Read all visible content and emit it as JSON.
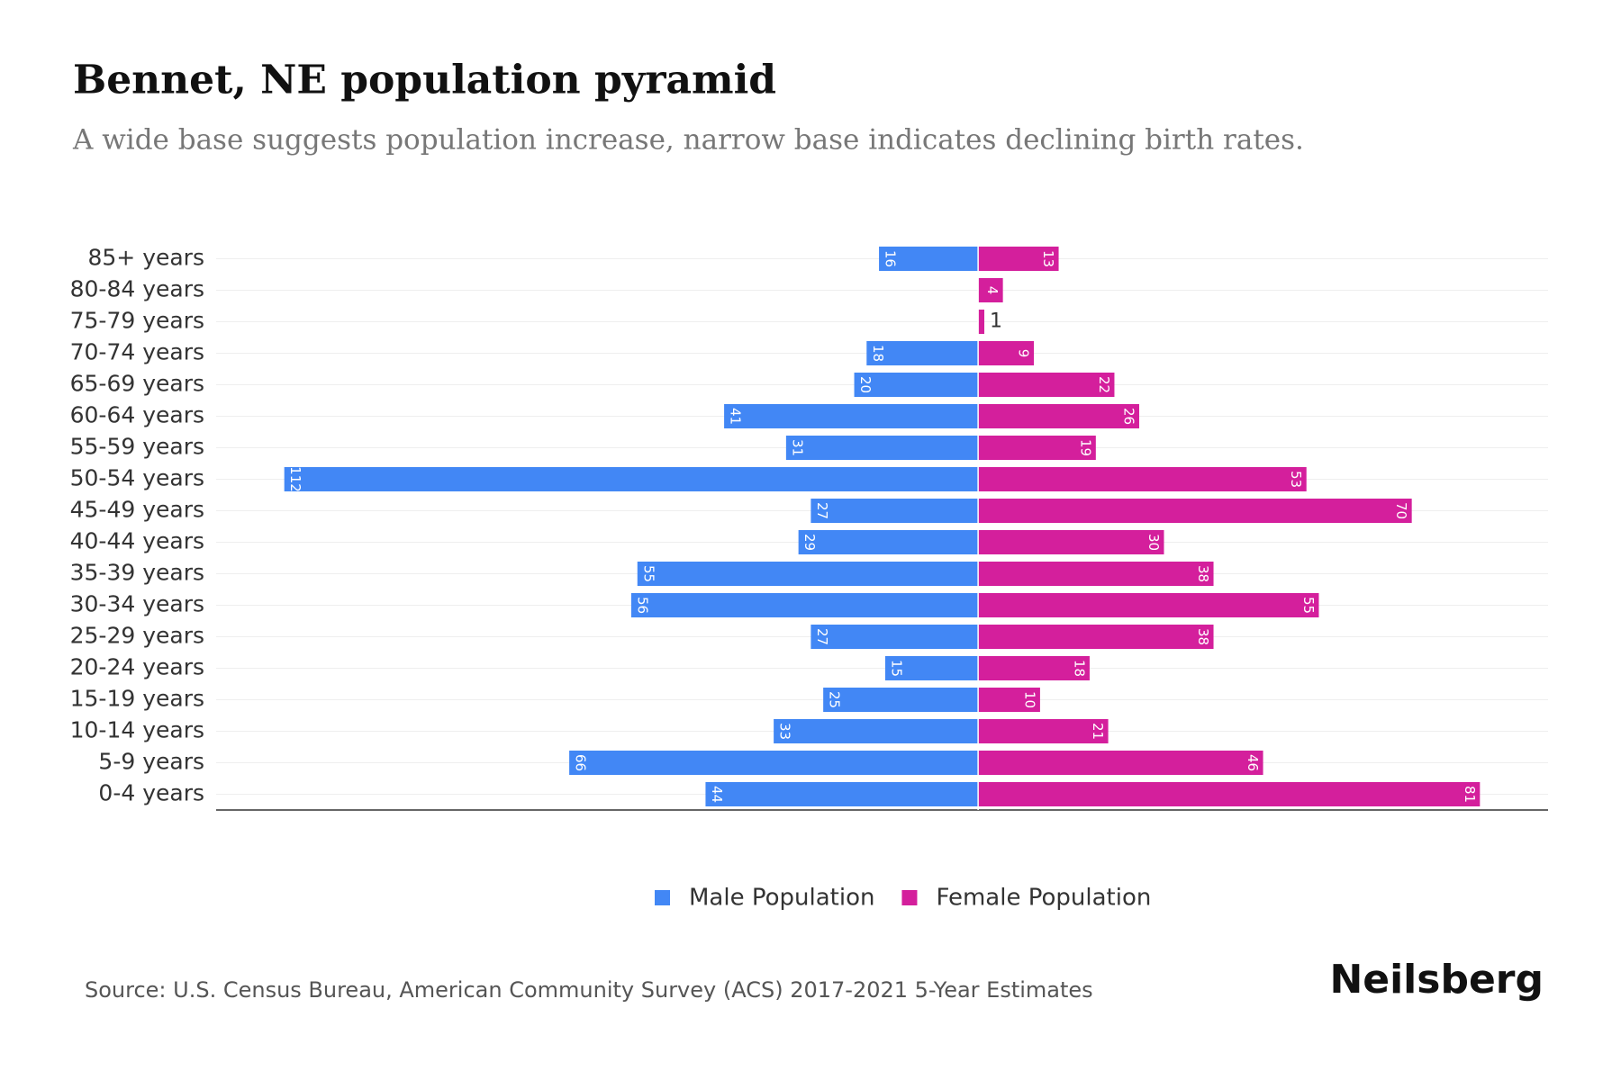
{
  "chart_data": {
    "type": "pyramid",
    "title": "Bennet, NE population pyramid",
    "subtitle": "A wide base suggests population increase, narrow base indicates declining birth rates.",
    "categories": [
      "85+ years",
      "80-84 years",
      "75-79 years",
      "70-74 years",
      "65-69 years",
      "60-64 years",
      "55-59 years",
      "50-54 years",
      "45-49 years",
      "40-44 years",
      "35-39 years",
      "30-34 years",
      "25-29 years",
      "20-24 years",
      "15-19 years",
      "10-14 years",
      "5-9 years",
      "0-4 years"
    ],
    "series": [
      {
        "name": "Male Population",
        "color": "#4287f5",
        "side": "left",
        "values": [
          16,
          0,
          0,
          18,
          20,
          41,
          31,
          112,
          27,
          29,
          55,
          56,
          27,
          15,
          25,
          33,
          66,
          44
        ]
      },
      {
        "name": "Female Population",
        "color": "#d41f9c",
        "side": "right",
        "values": [
          13,
          4,
          1,
          9,
          22,
          26,
          19,
          53,
          70,
          30,
          38,
          55,
          38,
          18,
          10,
          21,
          46,
          81
        ]
      }
    ],
    "xlim": [
      -123,
      92
    ],
    "grid": true,
    "legend": "bottom",
    "source": "Source: U.S. Census Bureau, American Community Survey (ACS) 2017-2021 5-Year Estimates",
    "brand": "Neilsberg"
  }
}
